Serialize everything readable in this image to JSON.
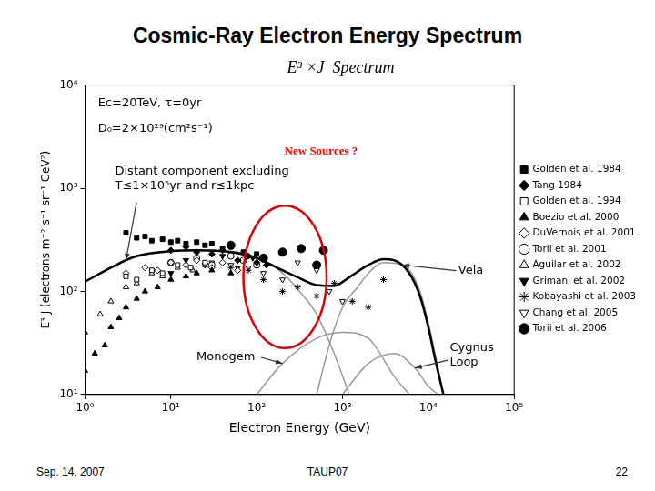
{
  "slide": {
    "title": "Cosmic-Ray Electron Energy Spectrum",
    "footer": [
      "Sep. 14, 2007",
      "TAUP07",
      "22"
    ]
  },
  "chart_data": {
    "type": "scatter",
    "title": "E³ ×J  Spectrum",
    "x_label": "Electron Energy (GeV)",
    "y_label": "E³ J (electrons m⁻² s⁻¹ sr⁻¹ GeV²)",
    "log": true,
    "grid": false,
    "legend": "right",
    "xlim": [
      1,
      100000
    ],
    "xticks": [
      {
        "value": 1,
        "label": "10⁰"
      },
      {
        "value": 10,
        "label": "10¹"
      },
      {
        "value": 100,
        "label": "10²"
      },
      {
        "value": 1000,
        "label": "10³"
      },
      {
        "value": 10000,
        "label": "10⁴"
      },
      {
        "value": 100000,
        "label": "10⁵"
      }
    ],
    "ylim": [
      10,
      10000
    ],
    "yticks": [
      {
        "value": 10,
        "label": "10¹"
      },
      {
        "value": 100,
        "label": "10²"
      },
      {
        "value": 1000,
        "label": "10³"
      },
      {
        "value": 10000,
        "label": "10⁴"
      }
    ],
    "annotations": [
      {
        "text": "Ec=20TeV, τ=0yr"
      },
      {
        "text": "D₀=2×10²⁹(cm²s⁻¹)"
      },
      {
        "text": "New Sources ?",
        "color": "#ff0000"
      }
    ],
    "series": [
      {
        "name": "Golden et al. 1984",
        "color": "#000000",
        "marker": "square",
        "x": [
          3,
          4,
          5,
          6,
          8,
          10,
          12,
          15,
          20,
          25,
          30,
          40,
          50,
          70,
          100
        ],
        "values": [
          370,
          330,
          340,
          310,
          320,
          300,
          310,
          290,
          300,
          280,
          290,
          260,
          270,
          240,
          230
        ]
      },
      {
        "name": "Tang 1984",
        "color": "#000000",
        "marker": "diamond",
        "x": [
          10,
          15,
          20,
          30,
          40,
          60,
          80,
          100,
          130
        ],
        "values": [
          250,
          270,
          240,
          230,
          250,
          200,
          220,
          190,
          180
        ]
      },
      {
        "name": "Golden et al. 1994",
        "color": "#000000",
        "marker": "open-square",
        "x": [
          3,
          4,
          6,
          8,
          12,
          17,
          25
        ],
        "values": [
          140,
          130,
          160,
          150,
          180,
          170,
          190
        ]
      },
      {
        "name": "Boezio et al. 2000",
        "color": "#000000",
        "marker": "triangle",
        "x": [
          1,
          1.3,
          1.7,
          2,
          2.5,
          3,
          4,
          5,
          7,
          10,
          15,
          20,
          30,
          50
        ],
        "values": [
          17,
          25,
          30,
          45,
          55,
          70,
          85,
          100,
          110,
          130,
          140,
          150,
          160,
          150
        ]
      },
      {
        "name": "DuVernois et al. 2001",
        "color": "#000000",
        "marker": "open-diamond",
        "x": [
          3,
          5,
          7,
          10,
          15,
          20,
          30,
          40,
          60
        ],
        "values": [
          150,
          170,
          160,
          190,
          180,
          200,
          170,
          190,
          160
        ]
      },
      {
        "name": "Torii et al. 2001",
        "color": "#000000",
        "marker": "open-circle",
        "x": [
          10,
          20,
          30,
          50,
          70,
          100
        ],
        "values": [
          190,
          210,
          180,
          220,
          200,
          180
        ]
      },
      {
        "name": "Aguilar et al. 2002",
        "color": "#000000",
        "marker": "open-triangle",
        "x": [
          1,
          1.5,
          2,
          3,
          4,
          6,
          8,
          12,
          18,
          25
        ],
        "values": [
          40,
          60,
          80,
          110,
          120,
          150,
          140,
          170,
          160,
          180
        ]
      },
      {
        "name": "Grimani et al. 2002",
        "color": "#000000",
        "marker": "triangle-down",
        "x": [
          10,
          15,
          25,
          40,
          60,
          90
        ],
        "values": [
          150,
          200,
          180,
          220,
          170,
          210
        ]
      },
      {
        "name": "Kobayashi et al. 2003",
        "color": "#000000",
        "marker": "asterisk",
        "x": [
          30,
          50,
          80,
          120,
          200,
          300,
          500,
          800,
          1300,
          2000,
          3000
        ],
        "values": [
          180,
          170,
          160,
          130,
          100,
          110,
          90,
          120,
          80,
          70,
          130
        ]
      },
      {
        "name": "Chang et al. 2005",
        "color": "#000000",
        "marker": "open-triangle-down",
        "x": [
          20,
          30,
          50,
          80,
          120,
          200,
          300,
          500,
          700,
          1000
        ],
        "values": [
          200,
          190,
          180,
          170,
          150,
          130,
          190,
          160,
          100,
          80
        ]
      },
      {
        "name": "Torii et al. 2006",
        "color": "#000000",
        "marker": "circle",
        "x": [
          50,
          120,
          200,
          330,
          500,
          600
        ],
        "values": [
          280,
          210,
          240,
          260,
          180,
          250
        ]
      },
      {
        "type": "line",
        "color": "#000000",
        "line_style": "thick",
        "x": [
          1,
          2,
          4,
          10,
          20,
          50,
          100,
          200,
          300,
          500,
          800,
          1200,
          2000,
          3000,
          4000,
          6000,
          8000,
          10000,
          12000,
          15000
        ],
        "values": [
          124,
          170,
          220,
          245,
          250,
          240,
          210,
          160,
          137,
          115,
          113,
          137,
          180,
          205,
          200,
          150,
          90,
          45,
          22,
          10
        ]
      },
      {
        "type": "line",
        "name": "Distant component excluding\nT≤1×10⁵yr and r≤1kpc",
        "color": "#999999",
        "line_style": "solid",
        "x": [
          1,
          3,
          10,
          30,
          100,
          200,
          300,
          500,
          800,
          1200
        ],
        "values": [
          124,
          200,
          245,
          250,
          215,
          150,
          105,
          60,
          25,
          10
        ]
      },
      {
        "type": "line",
        "name": "Vela",
        "color": "#999999",
        "line_style": "solid",
        "x": [
          500,
          700,
          1000,
          1500,
          2000,
          3000,
          5000,
          8000,
          12000,
          15000
        ],
        "values": [
          10,
          30,
          70,
          110,
          150,
          190,
          180,
          100,
          25,
          10
        ]
      },
      {
        "type": "line",
        "name": "Monogem",
        "color": "#999999",
        "line_style": "solid",
        "x": [
          100,
          200,
          500,
          1000,
          2000,
          4000,
          6000
        ],
        "values": [
          10,
          20,
          35,
          40,
          35,
          15,
          10
        ]
      },
      {
        "type": "line",
        "name": "Cygnus\nLoop",
        "color": "#999999",
        "line_style": "solid",
        "x": [
          1000,
          2000,
          4000,
          7000,
          10000,
          13000
        ],
        "values": [
          10,
          20,
          25,
          18,
          12,
          10
        ]
      }
    ]
  }
}
